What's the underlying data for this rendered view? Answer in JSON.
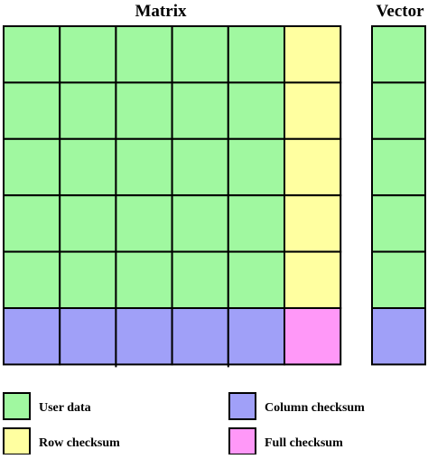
{
  "titles": {
    "matrix": "Matrix",
    "vector": "Vector"
  },
  "grid": {
    "data_rows": 5,
    "data_cols": 5
  },
  "colors": {
    "user_data": "#a0f8a0",
    "row_checksum": "#ffffa0",
    "column_checksum": "#a0a0f8",
    "full_checksum": "#ff98f8",
    "line": "#000000"
  },
  "legend": [
    {
      "key": "user_data",
      "label": "User data"
    },
    {
      "key": "row_checksum",
      "label": "Row checksum"
    },
    {
      "key": "column_checksum",
      "label": "Column checksum"
    },
    {
      "key": "full_checksum",
      "label": "Full checksum"
    }
  ]
}
